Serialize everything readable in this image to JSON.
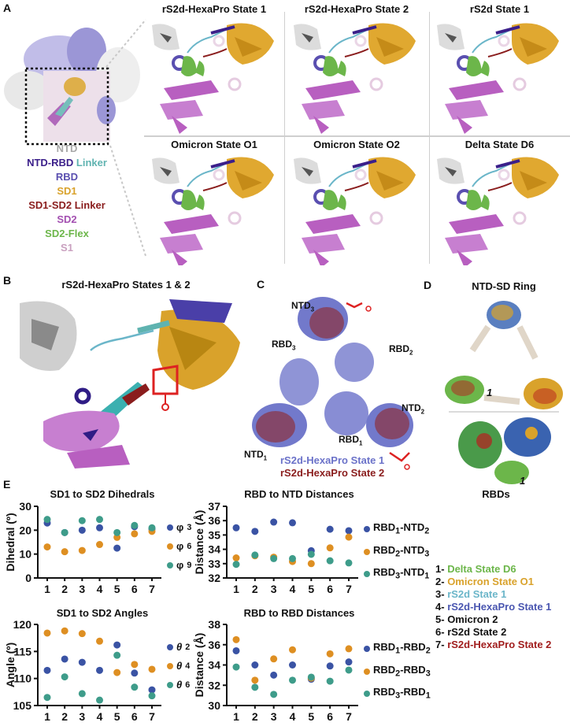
{
  "panel_a": {
    "label": "A",
    "panels": [
      {
        "title": "rS2d-HexaPro State 1"
      },
      {
        "title": "rS2d-HexaPro State 2"
      },
      {
        "title": "rS2d State 1"
      },
      {
        "title": "Omicron State O1"
      },
      {
        "title": "Omicron State O2"
      },
      {
        "title": "Delta State D6"
      }
    ],
    "legend": [
      {
        "text": "NTD",
        "color": "#a8a8a8"
      },
      {
        "text": "NTD-RBD",
        "color": "#3b1f8a",
        "suffix": "Linker",
        "suffix_color": "#5fb3b0"
      },
      {
        "text": "RBD",
        "color": "#5a4fb0"
      },
      {
        "text": "SD1",
        "color": "#d9a22b"
      },
      {
        "text": "SD1-SD2 Linker",
        "color": "#8a1d1d"
      },
      {
        "text": "SD2",
        "color": "#a34fb0"
      },
      {
        "text": "SD2-Flex",
        "color": "#6cb64a"
      },
      {
        "text": "S1",
        "color": "#c9a0bf"
      }
    ]
  },
  "panel_b": {
    "label": "B",
    "title": "rS2d-HexaPro States 1 & 2"
  },
  "panel_c": {
    "label": "C",
    "labels": {
      "ntd3": "NTD",
      "ntd3_sub": "3",
      "rbd2": "RBD",
      "rbd2_sub": "2",
      "rbd3": "RBD",
      "rbd3_sub": "3",
      "ntd2": "NTD",
      "ntd2_sub": "2",
      "rbd1": "RBD",
      "rbd1_sub": "1",
      "ntd1": "NTD",
      "ntd1_sub": "1"
    },
    "legend": [
      {
        "text": "rS2d-HexaPro State 1",
        "color": "#6b72c9"
      },
      {
        "text": "rS2d-HexaPro State 2",
        "color": "#8a1d1d"
      }
    ]
  },
  "panel_d": {
    "label": "D",
    "top_title": "NTD-SD Ring",
    "bottom_title": "RBDs",
    "marker": "1"
  },
  "panel_e": {
    "label": "E"
  },
  "state_legend": [
    {
      "num": "1-",
      "text": "Delta State D6",
      "color": "#6cb64a"
    },
    {
      "num": "2-",
      "text": "Omicron State O1",
      "color": "#d9a22b"
    },
    {
      "num": "3-",
      "text": "rS2d State 1",
      "color": "#6bb6c9"
    },
    {
      "num": "4-",
      "text": "rS2d-HexaPro State 1",
      "color": "#4a56b0"
    },
    {
      "num": "5-",
      "text": "Omicron 2",
      "color": "#111111"
    },
    {
      "num": "6-",
      "text": "rS2d State 2",
      "color": "#111111"
    },
    {
      "num": "7-",
      "text": "rS2d-HexaPro State 2",
      "color": "#a11d1d"
    }
  ],
  "colors": {
    "blue": "#3a53a4",
    "orange": "#de8f22",
    "teal": "#3e9c8a"
  },
  "chart_data": [
    {
      "type": "scatter",
      "title": "SD1 to SD2 Dihedrals",
      "xlabel": "",
      "ylabel": "Dihedral (º)",
      "categories": [
        "1",
        "2",
        "3",
        "4",
        "5",
        "6",
        "7"
      ],
      "ylim": [
        0,
        30
      ],
      "yticks": [
        0,
        10,
        20,
        30
      ],
      "series": [
        {
          "name": "φ3",
          "color": "#3a53a4",
          "values": [
            23,
            19,
            20,
            21,
            12.5,
            21.5,
            20.5
          ]
        },
        {
          "name": "φ6",
          "color": "#de8f22",
          "values": [
            13,
            11,
            11.5,
            14,
            17,
            18.5,
            19.5
          ]
        },
        {
          "name": "φ9",
          "color": "#3e9c8a",
          "values": [
            24.5,
            19,
            24,
            24.5,
            19,
            22,
            21
          ]
        }
      ],
      "legend_position": "right"
    },
    {
      "type": "scatter",
      "title": "RBD to NTD Distances",
      "xlabel": "",
      "ylabel": "Distance (Å)",
      "categories": [
        "1",
        "2",
        "3",
        "4",
        "5",
        "6",
        "7"
      ],
      "ylim": [
        32,
        37
      ],
      "yticks": [
        32,
        33,
        34,
        35,
        36,
        37
      ],
      "series": [
        {
          "name": "RBD1-NTD2",
          "color": "#3a53a4",
          "values": [
            35.5,
            35.25,
            35.9,
            35.85,
            33.9,
            35.4,
            35.3
          ]
        },
        {
          "name": "RBD2-NTD3",
          "color": "#de8f22",
          "values": [
            33.4,
            33.55,
            33.45,
            33.15,
            33.0,
            34.1,
            34.85
          ]
        },
        {
          "name": "RBD3-NTD1",
          "color": "#3e9c8a",
          "values": [
            32.95,
            33.6,
            33.35,
            33.35,
            33.65,
            33.2,
            33.05
          ]
        }
      ],
      "legend_position": "right"
    },
    {
      "type": "scatter",
      "title": "SD1 to SD2 Angles",
      "xlabel": "",
      "ylabel": "Angle (º)",
      "categories": [
        "1",
        "2",
        "3",
        "4",
        "5",
        "6",
        "7"
      ],
      "ylim": [
        105,
        120
      ],
      "yticks": [
        105,
        110,
        115,
        120
      ],
      "series": [
        {
          "name": "θ2",
          "color": "#3a53a4",
          "values": [
            111.5,
            113.6,
            113.0,
            111.5,
            116.2,
            111.0,
            107.9
          ]
        },
        {
          "name": "θ4",
          "color": "#de8f22",
          "values": [
            118.4,
            118.8,
            118.3,
            116.9,
            111.1,
            112.6,
            111.7
          ]
        },
        {
          "name": "θ6",
          "color": "#3e9c8a",
          "values": [
            106.5,
            110.3,
            107.2,
            106.0,
            114.3,
            108.4,
            106.8
          ]
        }
      ],
      "legend_position": "right"
    },
    {
      "type": "scatter",
      "title": "RBD to RBD Distances",
      "xlabel": "",
      "ylabel": "Distance (Å)",
      "categories": [
        "1",
        "2",
        "3",
        "4",
        "5",
        "6",
        "7"
      ],
      "ylim": [
        30,
        38
      ],
      "yticks": [
        30,
        32,
        34,
        36,
        38
      ],
      "series": [
        {
          "name": "RBD1-RBD2",
          "color": "#3a53a4",
          "values": [
            35.4,
            34.0,
            33.0,
            34.0,
            32.6,
            33.9,
            34.3
          ]
        },
        {
          "name": "RBD2-RBD3",
          "color": "#de8f22",
          "values": [
            36.5,
            32.5,
            34.6,
            35.5,
            32.7,
            35.1,
            35.6
          ]
        },
        {
          "name": "RBD3-RBD1",
          "color": "#3e9c8a",
          "values": [
            33.8,
            31.8,
            31.1,
            32.5,
            32.8,
            32.4,
            33.5
          ]
        }
      ],
      "legend_position": "right"
    }
  ],
  "chart_legends": {
    "dihedral": [
      {
        "sym": "φ",
        "sub": "3"
      },
      {
        "sym": "φ",
        "sub": "6"
      },
      {
        "sym": "φ",
        "sub": "9"
      }
    ],
    "rbd_ntd": [
      {
        "a": "RBD",
        "as": "1",
        "b": "-NTD",
        "bs": "2"
      },
      {
        "a": "RBD",
        "as": "2",
        "b": "-NTD",
        "bs": "3"
      },
      {
        "a": "RBD",
        "as": "3",
        "b": "-NTD",
        "bs": "1"
      }
    ],
    "angle": [
      {
        "sym": "θ",
        "sub": "2"
      },
      {
        "sym": "θ",
        "sub": "4"
      },
      {
        "sym": "θ",
        "sub": "6"
      }
    ],
    "rbd_rbd": [
      {
        "a": "RBD",
        "as": "1",
        "b": "-RBD",
        "bs": "2"
      },
      {
        "a": "RBD",
        "as": "2",
        "b": "-RBD",
        "bs": "3"
      },
      {
        "a": "RBD",
        "as": "3",
        "b": "-RBD",
        "bs": "1"
      }
    ]
  }
}
